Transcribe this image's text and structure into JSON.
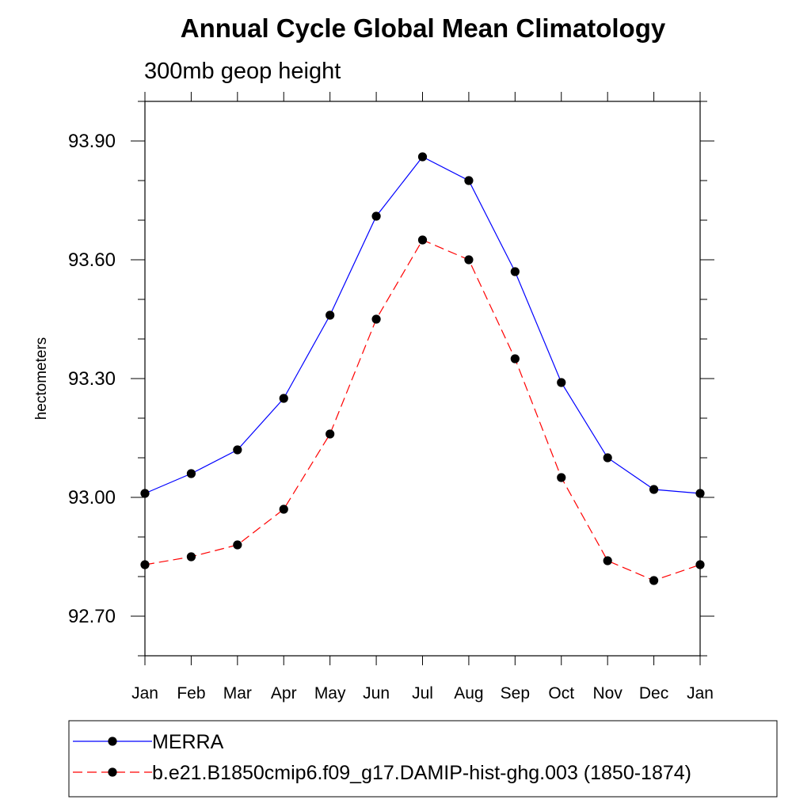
{
  "chart_data": {
    "type": "line",
    "title": "Annual Cycle Global Mean Climatology",
    "subtitle": "300mb geop height",
    "ylabel": "hectometers",
    "xlabel": "",
    "categories": [
      "Jan",
      "Feb",
      "Mar",
      "Apr",
      "May",
      "Jun",
      "Jul",
      "Aug",
      "Sep",
      "Oct",
      "Nov",
      "Dec",
      "Jan"
    ],
    "ylim": [
      92.6,
      94.0
    ],
    "yticks": [
      "93.90",
      "93.60",
      "93.30",
      "93.00",
      "92.70"
    ],
    "grid": false,
    "legend_position": "bottom",
    "series": [
      {
        "name": "MERRA",
        "color": "#0000ff",
        "style": "solid",
        "values": [
          93.01,
          93.06,
          93.12,
          93.25,
          93.46,
          93.71,
          93.86,
          93.8,
          93.57,
          93.29,
          93.1,
          93.02,
          93.01
        ]
      },
      {
        "name": "b.e21.B1850cmip6.f09_g17.DAMIP-hist-ghg.003 (1850-1874)",
        "color": "#ff0000",
        "style": "dashed",
        "values": [
          92.83,
          92.85,
          92.88,
          92.97,
          93.16,
          93.45,
          93.65,
          93.6,
          93.35,
          93.05,
          92.84,
          92.79,
          92.83
        ]
      }
    ]
  }
}
